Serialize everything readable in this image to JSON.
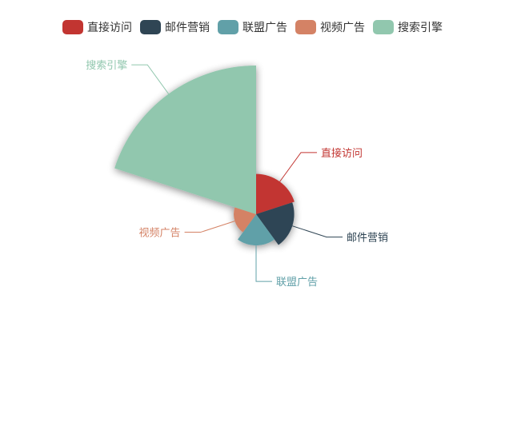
{
  "chart_data": {
    "type": "pie",
    "variant": "nightingale-rose",
    "legend_position": "top-center",
    "series": [
      {
        "name": "直接访问",
        "value": 335,
        "color": "#c23531"
      },
      {
        "name": "邮件营销",
        "value": 310,
        "color": "#2f4554"
      },
      {
        "name": "联盟广告",
        "value": 234,
        "color": "#61a0a8"
      },
      {
        "name": "视频广告",
        "value": 135,
        "color": "#d48265"
      },
      {
        "name": "搜索引擎",
        "value": 1548,
        "color": "#91c7ae"
      }
    ]
  }
}
